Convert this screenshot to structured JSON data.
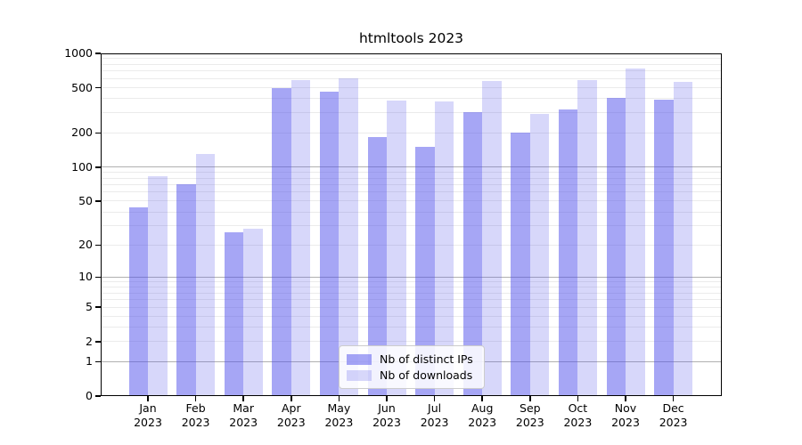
{
  "chart_data": {
    "type": "bar",
    "title": "htmltools 2023",
    "categories": [
      "Jan 2023",
      "Feb 2023",
      "Mar 2023",
      "Apr 2023",
      "May 2023",
      "Jun 2023",
      "Jul 2023",
      "Aug 2023",
      "Sep 2023",
      "Oct 2023",
      "Nov 2023",
      "Dec 2023"
    ],
    "series": [
      {
        "name": "Nb of distinct IPs",
        "color": "rgba(80,80,235,0.51)",
        "solid_color": "#a5a5f5",
        "values": [
          44,
          70,
          26,
          500,
          460,
          183,
          150,
          308,
          201,
          323,
          406,
          391
        ]
      },
      {
        "name": "Nb of downloads",
        "color": "rgba(80,80,235,0.23)",
        "solid_color": "#d7d7fa",
        "values": [
          83,
          131,
          28,
          580,
          605,
          388,
          378,
          575,
          297,
          580,
          735,
          560
        ]
      }
    ],
    "y_axis": {
      "scale": "log1p",
      "max": 1000,
      "ticks": [
        {
          "value": 1000,
          "label": "1000"
        },
        {
          "value": 500,
          "label": "500"
        },
        {
          "value": 200,
          "label": "200"
        },
        {
          "value": 100,
          "label": "100"
        },
        {
          "value": 50,
          "label": "50"
        },
        {
          "value": 20,
          "label": "20"
        },
        {
          "value": 10,
          "label": "10"
        },
        {
          "value": 5,
          "label": "5"
        },
        {
          "value": 2,
          "label": "2"
        },
        {
          "value": 1,
          "label": "1"
        },
        {
          "value": 0,
          "label": "0"
        }
      ],
      "major_gridlines": [
        1,
        10,
        100
      ],
      "minor_gridlines": [
        2,
        3,
        4,
        5,
        6,
        7,
        8,
        9,
        20,
        30,
        40,
        50,
        60,
        70,
        80,
        90,
        200,
        300,
        400,
        500,
        600,
        700,
        800,
        900
      ]
    },
    "legend_position": "bottom-center-inside",
    "grid": "on",
    "colors": {
      "grid_minor": "#ebebeb",
      "grid_major": "#b0b0b0",
      "spine": "#000000",
      "legend_border": "#cccccc"
    }
  }
}
